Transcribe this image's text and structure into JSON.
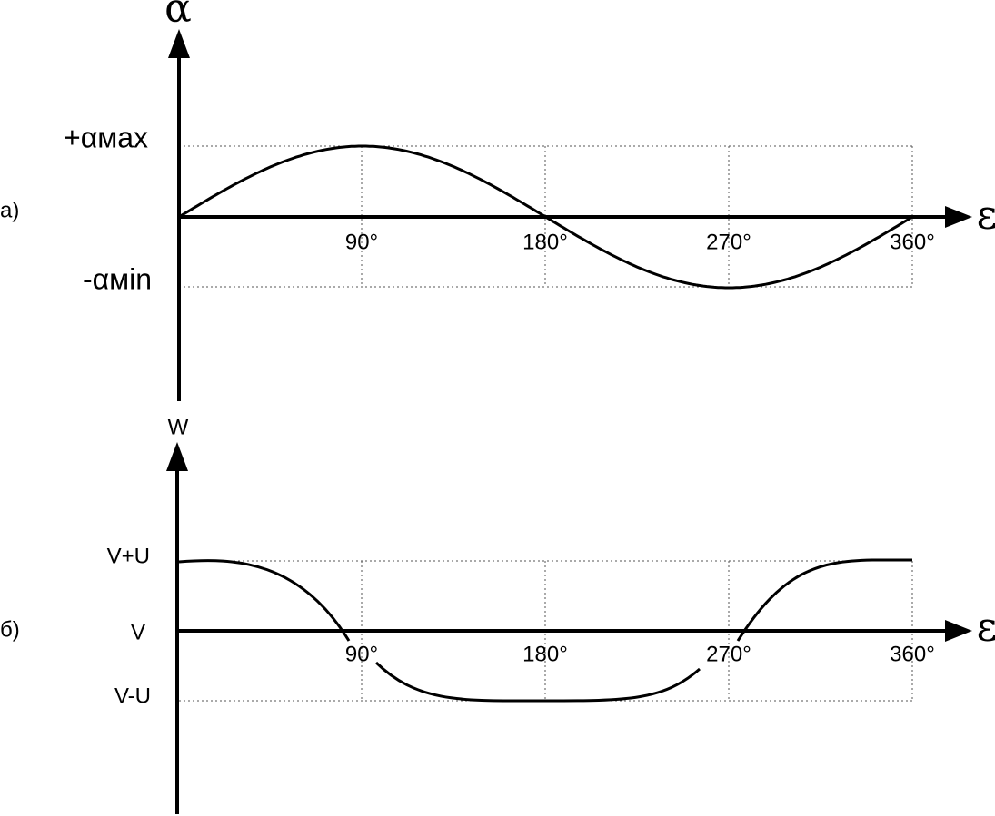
{
  "panel_a": {
    "label": "а)",
    "y_axis_label": "α",
    "x_axis_label": "ε",
    "y_labels": [
      "+αмах",
      "-αмin"
    ],
    "x_labels": [
      "90°",
      "180°",
      "270°",
      "360°"
    ]
  },
  "panel_b": {
    "label": "б)",
    "y_axis_label": "W",
    "x_axis_label": "ε",
    "y_labels": [
      "V+U",
      "V",
      "V-U"
    ],
    "x_labels": [
      "90°",
      "180°",
      "270°",
      "360°"
    ]
  }
}
